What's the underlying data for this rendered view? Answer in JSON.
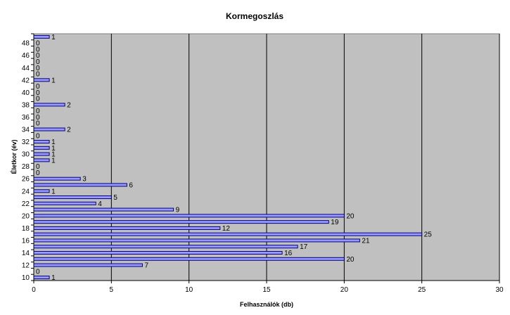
{
  "chart_data": {
    "type": "bar",
    "orientation": "horizontal",
    "title": "Kormegoszlás",
    "xlabel": "Felhasználók (db)",
    "ylabel": "Életkor (év)",
    "xlim": [
      0,
      30
    ],
    "xticks": [
      0,
      5,
      10,
      15,
      20,
      25,
      30
    ],
    "yticks": [
      10,
      12,
      14,
      16,
      18,
      20,
      22,
      24,
      26,
      28,
      30,
      32,
      34,
      36,
      38,
      40,
      42,
      44,
      46,
      48
    ],
    "categories": [
      10,
      11,
      12,
      13,
      14,
      15,
      16,
      17,
      18,
      19,
      20,
      21,
      22,
      23,
      24,
      25,
      26,
      27,
      28,
      29,
      30,
      31,
      32,
      33,
      34,
      35,
      36,
      37,
      38,
      39,
      40,
      41,
      42,
      43,
      44,
      45,
      46,
      47,
      48,
      49
    ],
    "values": [
      1,
      0,
      7,
      20,
      16,
      17,
      21,
      25,
      12,
      19,
      20,
      9,
      4,
      5,
      1,
      6,
      3,
      0,
      0,
      1,
      1,
      1,
      1,
      0,
      2,
      0,
      0,
      0,
      2,
      0,
      0,
      0,
      1,
      0,
      0,
      0,
      0,
      0,
      0,
      1
    ],
    "grid": "vertical",
    "legend": false,
    "colors": {
      "plot_background": "#c0c0c0",
      "bar_fill": "#9999ff",
      "bar_stroke": "#000080",
      "gridline": "#000000"
    }
  }
}
